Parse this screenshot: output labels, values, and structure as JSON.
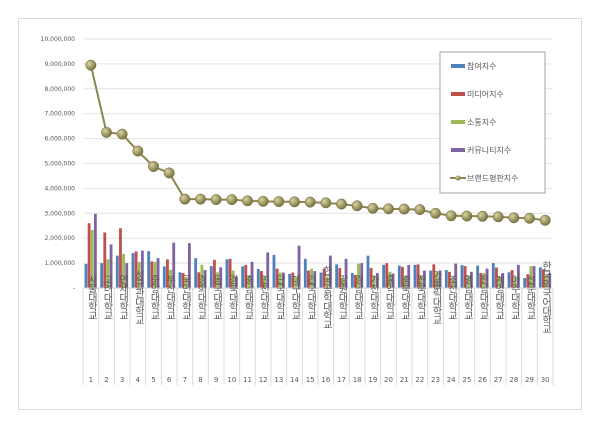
{
  "chart_data": {
    "type": "bar+line",
    "title": "",
    "xlabel": "",
    "ylabel": "",
    "ylim": [
      0,
      10000000
    ],
    "yticks": [
      "-",
      "1,000,000",
      "2,000,000",
      "3,000,000",
      "4,000,000",
      "5,000,000",
      "6,000,000",
      "7,000,000",
      "8,000,000",
      "9,000,000",
      "10,000,000"
    ],
    "grid": true,
    "legend_position": "right",
    "categories": [
      "서울대학교",
      "고려대학교",
      "연세대학교",
      "성균관대학교",
      "중앙대학교",
      "부산대학교",
      "국민대학교",
      "경희대학교",
      "동국대학교",
      "경북대학교",
      "충남대학교",
      "인천대학교",
      "단국대학교",
      "대구대학교",
      "건국대학교",
      "한국공학대학교",
      "강원대학교",
      "경남대학교",
      "가천대학교",
      "홍익대학교",
      "충북대학교",
      "전북대학교",
      "가톨릭대학교",
      "조선대학교",
      "영남대학교",
      "전남대학교",
      "계명대학교",
      "아주대학교",
      "선문대학교",
      "한국외국어대학교"
    ],
    "ranks": [
      "1",
      "2",
      "3",
      "4",
      "5",
      "6",
      "7",
      "8",
      "9",
      "10",
      "11",
      "12",
      "13",
      "14",
      "15",
      "16",
      "17",
      "18",
      "19",
      "20",
      "21",
      "22",
      "23",
      "24",
      "25",
      "26",
      "27",
      "28",
      "29",
      "30"
    ],
    "series": [
      {
        "name": "참여지수",
        "type": "bar",
        "color": "#4f81bd",
        "values": [
          970000,
          1000000,
          1300000,
          1400000,
          1480000,
          870000,
          630000,
          1200000,
          880000,
          1150000,
          870000,
          770000,
          1330000,
          570000,
          1170000,
          620000,
          950000,
          600000,
          1300000,
          930000,
          900000,
          930000,
          700000,
          720000,
          920000,
          900000,
          1000000,
          630000,
          400000,
          830000
        ]
      },
      {
        "name": "미디어지수",
        "type": "bar",
        "color": "#c0504d",
        "values": [
          2600000,
          2230000,
          2400000,
          1470000,
          1070000,
          1150000,
          600000,
          630000,
          1130000,
          1170000,
          930000,
          680000,
          780000,
          620000,
          700000,
          780000,
          800000,
          520000,
          800000,
          1000000,
          850000,
          950000,
          950000,
          650000,
          880000,
          600000,
          820000,
          720000,
          550000,
          750000
        ]
      },
      {
        "name": "소통지수",
        "type": "bar",
        "color": "#9bbb59",
        "values": [
          2330000,
          1150000,
          1370000,
          1050000,
          1050000,
          730000,
          450000,
          930000,
          630000,
          700000,
          500000,
          480000,
          620000,
          450000,
          770000,
          450000,
          400000,
          980000,
          500000,
          650000,
          450000,
          500000,
          630000,
          400000,
          500000,
          600000,
          450000,
          450000,
          880000,
          500000
        ]
      },
      {
        "name": "커뮤니티지수",
        "type": "bar",
        "color": "#8064a2",
        "values": [
          2980000,
          1750000,
          1000000,
          1500000,
          1200000,
          1820000,
          1800000,
          720000,
          830000,
          450000,
          1050000,
          1430000,
          620000,
          1700000,
          680000,
          1300000,
          1170000,
          1000000,
          600000,
          580000,
          920000,
          700000,
          700000,
          980000,
          650000,
          780000,
          600000,
          930000,
          880000,
          600000
        ]
      },
      {
        "name": "브랜드평판지수",
        "type": "line",
        "color": "#8c8650",
        "values": [
          8950000,
          6250000,
          6180000,
          5500000,
          4880000,
          4620000,
          3570000,
          3570000,
          3550000,
          3550000,
          3500000,
          3480000,
          3470000,
          3460000,
          3450000,
          3420000,
          3370000,
          3300000,
          3200000,
          3180000,
          3170000,
          3150000,
          3000000,
          2900000,
          2890000,
          2880000,
          2860000,
          2820000,
          2800000,
          2720000
        ]
      }
    ]
  }
}
